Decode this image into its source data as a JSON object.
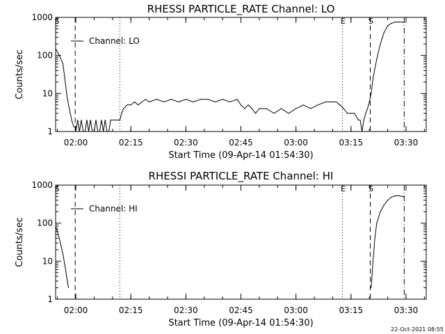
{
  "footer_timestamp": "22-Oct-2021 08:55",
  "charts": [
    {
      "type": "line",
      "title": "RHESSI PARTICLE_RATE Channel: LO",
      "xlabel": "Start Time (09-Apr-14 01:54:30)",
      "ylabel": "Counts/sec",
      "legend_label": "Channel: LO",
      "legend_position": "top-left",
      "yscale": "log",
      "ylim": [
        1,
        1000
      ],
      "xlim": [
        "01:54:30",
        "03:35:30"
      ],
      "x_ticks": [
        "02:00",
        "02:15",
        "02:30",
        "02:45",
        "03:00",
        "03:15",
        "03:30"
      ],
      "y_ticks": [
        "1",
        "10",
        "100",
        "1000"
      ],
      "markers": [
        {
          "label": "S",
          "time": "01:54:40",
          "style": "none"
        },
        {
          "label": "",
          "time": "01:59:50",
          "style": "dashed"
        },
        {
          "label": "",
          "time": "02:12:00",
          "style": "dotted"
        },
        {
          "label": "E",
          "time": "03:12:40",
          "style": "dotted"
        },
        {
          "label": "S",
          "time": "03:20:15",
          "style": "dashed"
        },
        {
          "label": "",
          "time": "03:29:30",
          "style": "dashdot"
        }
      ],
      "series": [
        {
          "x": [
            "01:54:30",
            "01:55:30",
            "01:56:30",
            "01:57:00",
            "01:57:30",
            "01:58:00",
            "01:58:30",
            "01:59:00",
            "01:59:30",
            "02:00:00",
            "02:00:30",
            "02:01:00",
            "02:01:30",
            "02:02:00",
            "02:02:30",
            "02:03:00",
            "02:03:30",
            "02:04:00",
            "02:04:30",
            "02:05:00",
            "02:05:30",
            "02:06:00",
            "02:06:30",
            "02:07:00",
            "02:07:30",
            "02:08:00",
            "02:08:30",
            "02:09:00",
            "02:09:30",
            "02:10:00",
            "02:11:00",
            "02:12:00",
            "02:12:30",
            "02:13:00",
            "02:14:00",
            "02:15:00",
            "02:16:00",
            "02:17:00",
            "02:18:00",
            "02:19:00",
            "02:20:00",
            "02:22:00",
            "02:24:00",
            "02:26:00",
            "02:28:00",
            "02:30:00",
            "02:32:00",
            "02:34:00",
            "02:36:00",
            "02:38:00",
            "02:40:00",
            "02:42:00",
            "02:44:00",
            "02:45:00",
            "02:46:00",
            "02:47:00",
            "02:48:00",
            "02:49:00",
            "02:50:00",
            "02:52:00",
            "02:54:00",
            "02:56:00",
            "02:58:00",
            "03:00:00",
            "03:02:00",
            "03:04:00",
            "03:06:00",
            "03:08:00",
            "03:10:00",
            "03:11:00",
            "03:12:00",
            "03:13:00",
            "03:14:00",
            "03:15:00",
            "03:16:00",
            "03:17:00",
            "03:17:30",
            "03:18:00",
            "03:18:30",
            "03:19:00",
            "03:19:30",
            "03:20:00",
            "03:20:30",
            "03:21:00",
            "03:22:00",
            "03:23:00",
            "03:24:00",
            "03:25:00",
            "03:26:00",
            "03:27:00",
            "03:28:00",
            "03:29:00",
            "03:29:30"
          ],
          "y": [
            150,
            100,
            60,
            25,
            10,
            5,
            3,
            1.8,
            1.3,
            1,
            2,
            1,
            2,
            1,
            1,
            2,
            1,
            2,
            1,
            1,
            2,
            1,
            1,
            2,
            1,
            2,
            1,
            1,
            2,
            2,
            2,
            2,
            3,
            4,
            5,
            5,
            6,
            5,
            6,
            7,
            6,
            7,
            6,
            7,
            6,
            7,
            6,
            7,
            7,
            6,
            7,
            6,
            7,
            5,
            4,
            5,
            4,
            3,
            4,
            4,
            3,
            4,
            3,
            4,
            5,
            4,
            5,
            6,
            6,
            6,
            5,
            4,
            3,
            3,
            3,
            2,
            2,
            1,
            2,
            3,
            4,
            6,
            10,
            25,
            80,
            200,
            400,
            600,
            700,
            750,
            750,
            750,
            750
          ],
          "gaps_after_index": [
            8
          ]
        }
      ]
    },
    {
      "type": "line",
      "title": "RHESSI PARTICLE_RATE Channel: HI",
      "xlabel": "Start Time (09-Apr-14 01:54:30)",
      "ylabel": "Counts/sec",
      "legend_label": "Channel: HI",
      "legend_position": "top-left",
      "yscale": "log",
      "ylim": [
        1,
        1000
      ],
      "xlim": [
        "01:54:30",
        "03:35:30"
      ],
      "x_ticks": [
        "02:00",
        "02:15",
        "02:30",
        "02:45",
        "03:00",
        "03:15",
        "03:30"
      ],
      "y_ticks": [
        "1",
        "10",
        "100",
        "1000"
      ],
      "markers": [
        {
          "label": "S",
          "time": "01:54:40",
          "style": "none"
        },
        {
          "label": "",
          "time": "01:59:50",
          "style": "dashed"
        },
        {
          "label": "",
          "time": "02:12:00",
          "style": "dotted"
        },
        {
          "label": "E",
          "time": "03:12:40",
          "style": "dotted"
        },
        {
          "label": "S",
          "time": "03:20:15",
          "style": "dashed"
        },
        {
          "label": "",
          "time": "03:29:30",
          "style": "dashdot"
        }
      ],
      "series": [
        {
          "x": [
            "01:54:30",
            "01:55:00",
            "01:55:30",
            "01:56:00",
            "01:56:30",
            "01:57:00",
            "01:57:30",
            "01:58:00",
            "03:20:30",
            "03:21:00",
            "03:21:30",
            "03:22:00",
            "03:23:00",
            "03:24:00",
            "03:25:00",
            "03:26:00",
            "03:27:00",
            "03:28:00",
            "03:29:00",
            "03:29:30"
          ],
          "y": [
            80,
            60,
            40,
            25,
            15,
            8,
            4,
            2,
            2,
            10,
            40,
            100,
            200,
            300,
            400,
            480,
            520,
            530,
            500,
            490
          ],
          "gaps_after_index": [
            7
          ]
        }
      ]
    }
  ]
}
